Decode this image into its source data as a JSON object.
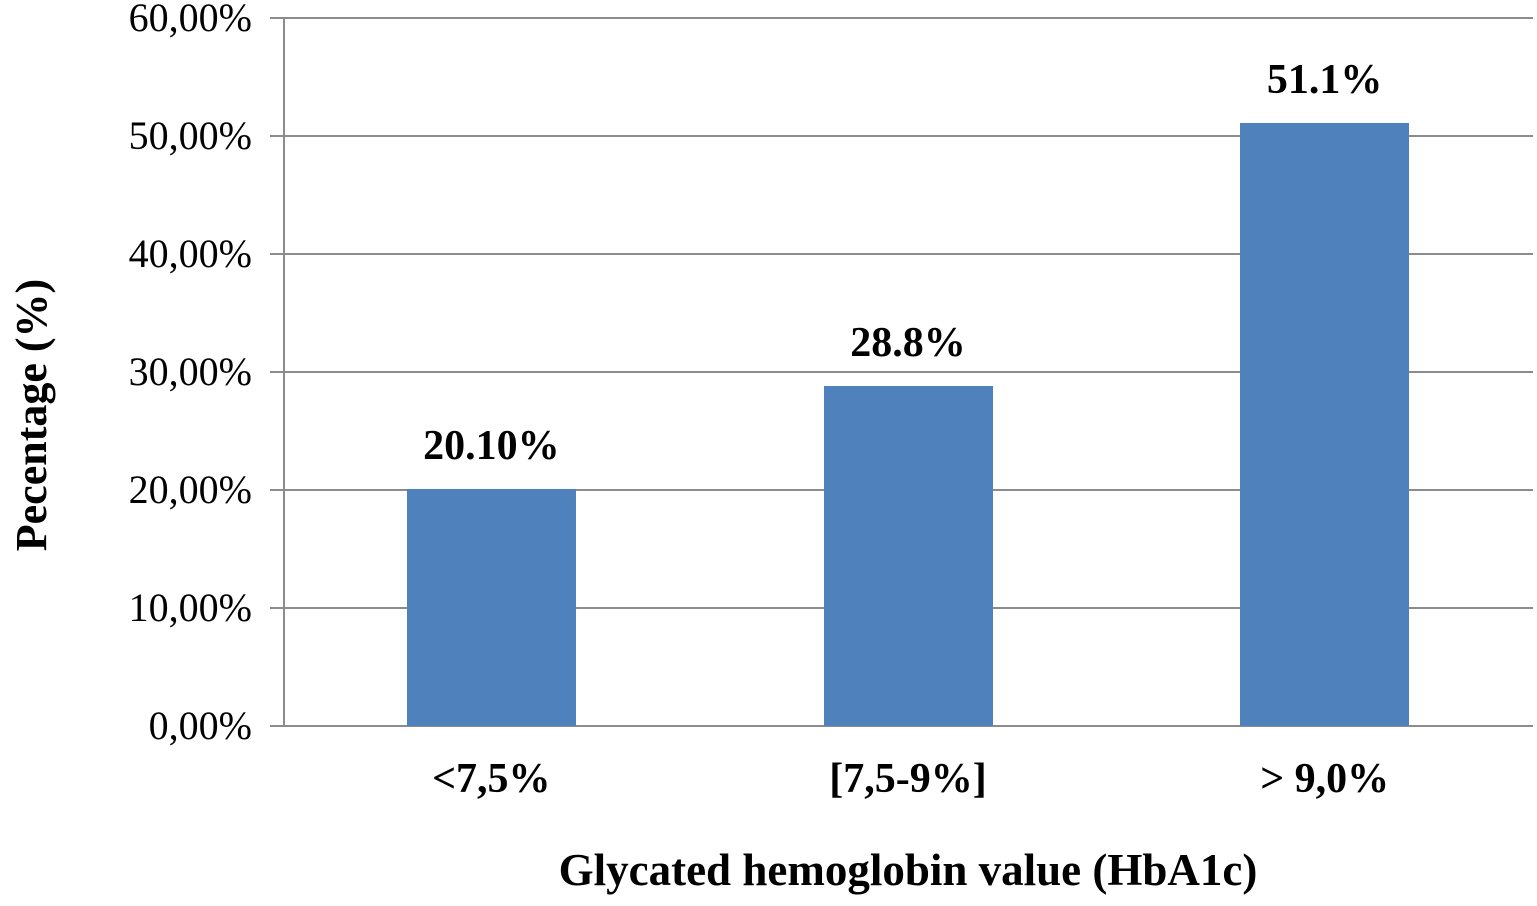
{
  "chart_data": {
    "type": "bar",
    "title": "",
    "categories": [
      "<7,5%",
      "[7,5-9%]",
      "> 9,0%"
    ],
    "values": [
      20.1,
      28.8,
      51.1
    ],
    "data_labels": [
      "20.10%",
      "28.8%",
      "51.1%"
    ],
    "xlabel": "Glycated hemoglobin value (HbA1c)",
    "ylabel": "Pecentage (%)",
    "ylim": [
      0,
      60
    ],
    "ytick_step": 10,
    "ytick_labels": [
      "0,00%",
      "10,00%",
      "20,00%",
      "30,00%",
      "40,00%",
      "50,00%",
      "60,00%"
    ],
    "grid": true,
    "legend": "none",
    "bar_color": "#4F81BD",
    "axis_color": "#8C8C8C",
    "text_color": "#000000"
  }
}
